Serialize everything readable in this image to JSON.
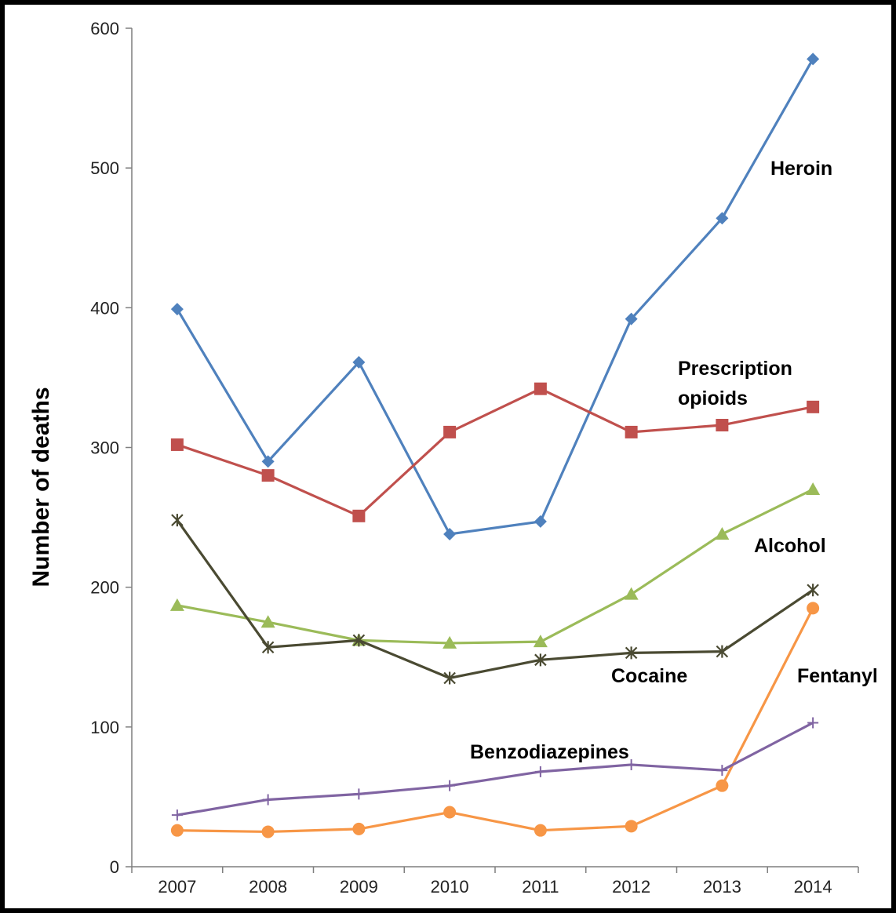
{
  "chart_data": {
    "type": "line",
    "title": "",
    "xlabel": "",
    "ylabel": "Number of deaths",
    "ylim": [
      0,
      600
    ],
    "yticks": [
      0,
      100,
      200,
      300,
      400,
      500,
      600
    ],
    "grid": false,
    "legend": "none (series labelled inline)",
    "categories": [
      "2007",
      "2008",
      "2009",
      "2010",
      "2011",
      "2012",
      "2013",
      "2014"
    ],
    "series": [
      {
        "name": "Heroin",
        "label_lines": [
          "Heroin"
        ],
        "color": "#4f81bd",
        "marker": "diamond",
        "values": [
          399,
          290,
          361,
          238,
          247,
          392,
          464,
          578
        ]
      },
      {
        "name": "Prescription opioids",
        "label_lines": [
          "Prescription",
          "opioids"
        ],
        "color": "#c0504d",
        "marker": "square",
        "values": [
          302,
          280,
          251,
          311,
          342,
          311,
          316,
          329
        ]
      },
      {
        "name": "Alcohol",
        "label_lines": [
          "Alcohol"
        ],
        "color": "#9bbb59",
        "marker": "triangle",
        "values": [
          187,
          175,
          162,
          160,
          161,
          195,
          238,
          270
        ]
      },
      {
        "name": "Cocaine",
        "label_lines": [
          "Cocaine"
        ],
        "color": "#4a4a32",
        "marker": "star",
        "values": [
          248,
          157,
          162,
          135,
          148,
          153,
          154,
          198
        ]
      },
      {
        "name": "Fentanyl",
        "label_lines": [
          "Fentanyl"
        ],
        "color": "#f79646",
        "marker": "circle",
        "values": [
          26,
          25,
          27,
          39,
          26,
          29,
          58,
          185
        ]
      },
      {
        "name": "Benzodiazepines",
        "label_lines": [
          "Benzodiazepines"
        ],
        "color": "#8064a2",
        "marker": "plus",
        "values": [
          37,
          48,
          52,
          58,
          68,
          73,
          69,
          103
        ]
      }
    ]
  }
}
